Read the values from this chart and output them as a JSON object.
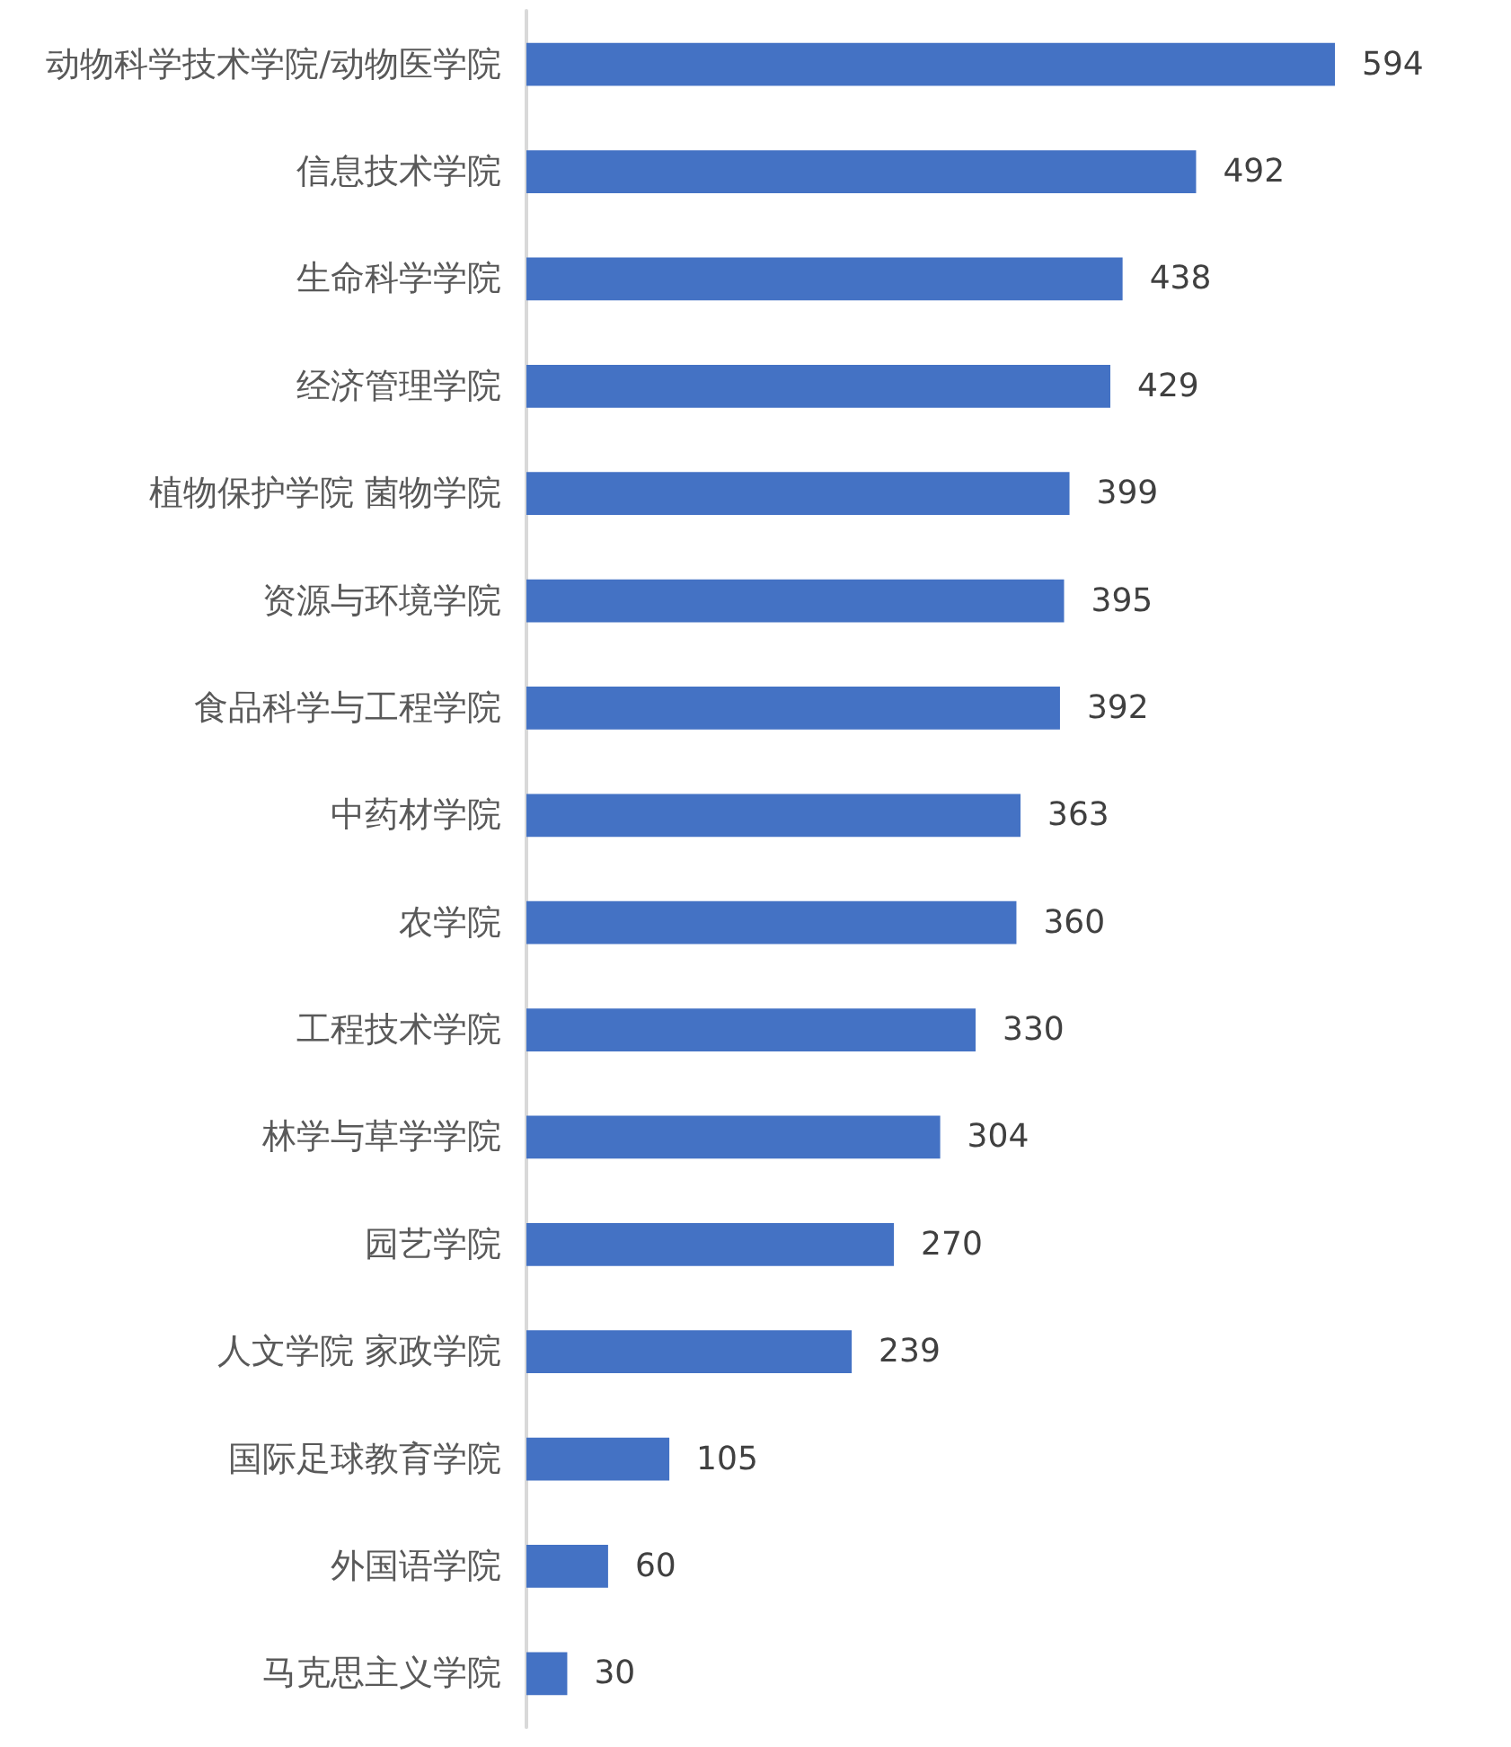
{
  "chart_data": {
    "type": "bar",
    "orientation": "horizontal",
    "categories": [
      "动物科学技术学院/动物医学院",
      "信息技术学院",
      "生命科学学院",
      "经济管理学院",
      "植物保护学院 菌物学院",
      "资源与环境学院",
      "食品科学与工程学院",
      "中药材学院",
      "农学院",
      "工程技术学院",
      "林学与草学学院",
      "园艺学院",
      "人文学院 家政学院",
      "国际足球教育学院",
      "外国语学院",
      "马克思主义学院"
    ],
    "values": [
      594,
      492,
      438,
      429,
      399,
      395,
      392,
      363,
      360,
      330,
      304,
      270,
      239,
      105,
      60,
      30
    ],
    "color": "#4472c4",
    "tick_labels": "y",
    "data_labels": true
  }
}
